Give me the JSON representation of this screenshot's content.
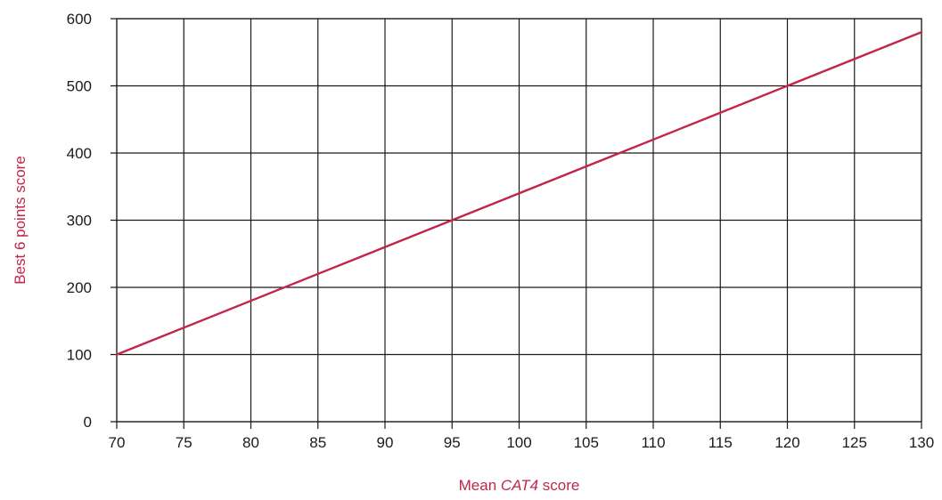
{
  "chart_data": {
    "type": "line",
    "title": "",
    "xlabel_prefix": "Mean ",
    "xlabel_emphasis": "CAT4",
    "xlabel_suffix": " score",
    "ylabel": "Best 6 points score",
    "xlim": [
      70,
      130
    ],
    "ylim": [
      0,
      600
    ],
    "x_ticks": [
      "70",
      "75",
      "80",
      "85",
      "90",
      "95",
      "100",
      "105",
      "110",
      "115",
      "120",
      "125",
      "130"
    ],
    "y_ticks": [
      "0",
      "100",
      "200",
      "300",
      "400",
      "500",
      "600"
    ],
    "grid": true,
    "legend": "none",
    "series": [
      {
        "x": [
          70,
          130
        ],
        "y": [
          100,
          580
        ],
        "color": "#c0264a"
      }
    ],
    "colors": {
      "line": "#c0264a",
      "axis_title": "#c0264a",
      "grid": "#1a1a1a",
      "tick_text": "#1a1a1a"
    }
  }
}
